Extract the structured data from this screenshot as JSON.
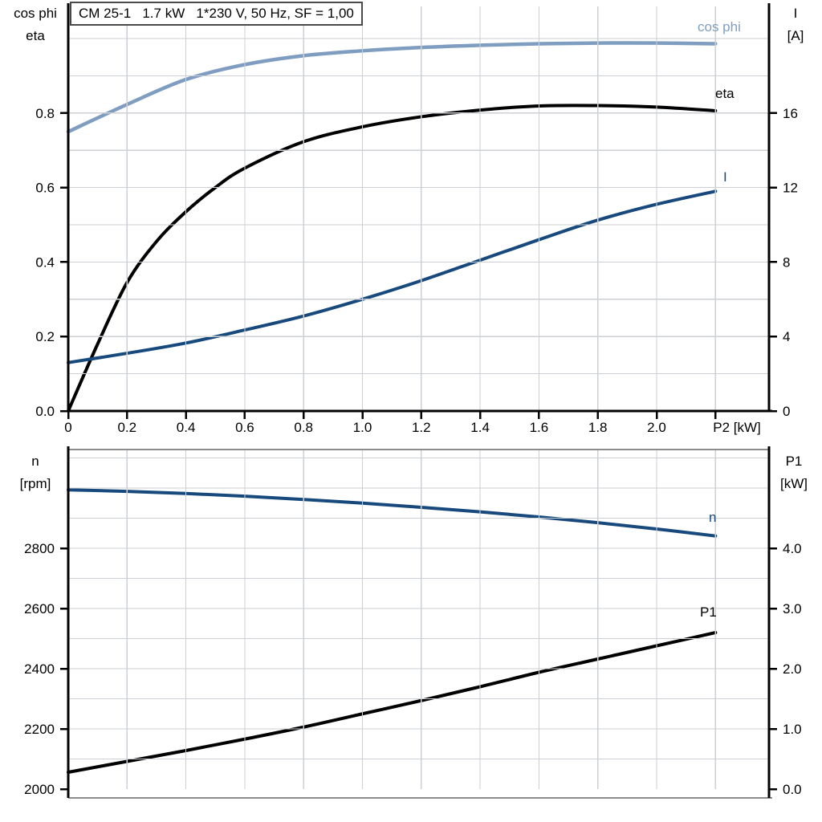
{
  "title_box": {
    "text": "CM 25-1   1.7 kW   1*230 V, 50 Hz, SF = 1,00"
  },
  "axis_headers": {
    "top_left": {
      "line1": "cos phi",
      "line2": "eta"
    },
    "top_right": {
      "line1": "I",
      "line2": "[A]"
    },
    "bottom_left": {
      "line1": "n",
      "line2": "[rpm]"
    },
    "bottom_right": {
      "line1": "P1",
      "line2": "[kW]"
    }
  },
  "curve_labels": {
    "cos_phi": "cos phi",
    "eta": "eta",
    "current": "I",
    "speed": "n",
    "power_in": "P1"
  },
  "colors": {
    "light_blue": "#7f9dc0",
    "dark_blue": "#17497d",
    "black": "#000000",
    "grid": "#cccfd3",
    "axis": "#000000",
    "gray_border": "#8c8c8c",
    "background": "#ffffff"
  },
  "chart_data": [
    {
      "type": "line",
      "title": "CM 25-1   1.7 kW   1*230 V, 50 Hz, SF = 1,00",
      "xlabel": "P2 [kW]",
      "ylabel_left": "cos phi / eta",
      "ylabel_right": "I [A]",
      "grid": true,
      "xlim": [
        0,
        2.38
      ],
      "ylim_left": [
        0,
        1.08
      ],
      "ylim_right": [
        0,
        21.7
      ],
      "x_tick_values": [
        0,
        0.2,
        0.4,
        0.6,
        0.8,
        1.0,
        1.2,
        1.4,
        1.6,
        1.8,
        2.0,
        2.2
      ],
      "x_tick_labels": [
        "0",
        "0.2",
        "0.4",
        "0.6",
        "0.8",
        "1.0",
        "1.2",
        "1.4",
        "1.6",
        "1.8",
        "2.0",
        ""
      ],
      "left_tick_values": [
        0,
        0.2,
        0.4,
        0.6,
        0.8
      ],
      "left_tick_labels": [
        "0.0",
        "0.2",
        "0.4",
        "0.6",
        "0.8"
      ],
      "right_tick_values": [
        0,
        4,
        8,
        12,
        16
      ],
      "right_tick_labels": [
        "0",
        "4",
        "8",
        "12",
        "16"
      ],
      "series": [
        {
          "name": "cos phi",
          "axis": "left",
          "color_key": "light_blue",
          "width": 4.5,
          "x": [
            0,
            0.2,
            0.4,
            0.6,
            0.8,
            1.0,
            1.2,
            1.4,
            1.6,
            1.8,
            2.0,
            2.2
          ],
          "y": [
            0.75,
            0.823,
            0.89,
            0.93,
            0.954,
            0.967,
            0.976,
            0.982,
            0.986,
            0.988,
            0.988,
            0.986
          ]
        },
        {
          "name": "eta",
          "axis": "left",
          "color_key": "black",
          "width": 4,
          "x": [
            0,
            0.1,
            0.2,
            0.3,
            0.4,
            0.5,
            0.6,
            0.8,
            1.0,
            1.2,
            1.4,
            1.6,
            1.8,
            2.0,
            2.2
          ],
          "y": [
            0,
            0.18,
            0.345,
            0.455,
            0.535,
            0.6,
            0.652,
            0.723,
            0.763,
            0.79,
            0.808,
            0.819,
            0.82,
            0.816,
            0.806
          ]
        },
        {
          "name": "I",
          "axis": "right",
          "color_key": "dark_blue",
          "width": 4,
          "x": [
            0,
            0.2,
            0.4,
            0.6,
            0.8,
            1.0,
            1.2,
            1.4,
            1.6,
            1.8,
            2.0,
            2.2
          ],
          "y": [
            2.6,
            3.1,
            3.65,
            4.35,
            5.1,
            6.0,
            7.0,
            8.1,
            9.2,
            10.25,
            11.1,
            11.8
          ]
        }
      ]
    },
    {
      "type": "line",
      "title": "",
      "xlabel": "",
      "ylabel_left": "n [rpm]",
      "ylabel_right": "P1 [kW]",
      "grid": true,
      "xlim": [
        0,
        2.38
      ],
      "ylim_left": [
        2000,
        3128
      ],
      "ylim_right": [
        0,
        5.64
      ],
      "x_tick_values": [],
      "x_tick_labels": [],
      "left_tick_values": [
        2000,
        2200,
        2400,
        2600,
        2800
      ],
      "left_tick_labels": [
        "2000",
        "2200",
        "2400",
        "2600",
        "2800"
      ],
      "right_tick_values": [
        0,
        1,
        2,
        3,
        4
      ],
      "right_tick_labels": [
        "0.0",
        "1.0",
        "2.0",
        "3.0",
        "4.0"
      ],
      "series": [
        {
          "name": "n",
          "axis": "left",
          "color_key": "dark_blue",
          "width": 4,
          "x": [
            0,
            0.2,
            0.4,
            0.6,
            0.8,
            1.0,
            1.2,
            1.4,
            1.6,
            1.8,
            2.0,
            2.2
          ],
          "y": [
            2994,
            2989,
            2982,
            2973,
            2962,
            2950,
            2936,
            2921,
            2904,
            2885,
            2864,
            2841
          ]
        },
        {
          "name": "P1",
          "axis": "right",
          "color_key": "black",
          "width": 4,
          "x": [
            0,
            0.2,
            0.4,
            0.6,
            0.8,
            1.0,
            1.2,
            1.4,
            1.6,
            1.8,
            2.0,
            2.2
          ],
          "y": [
            0.28,
            0.46,
            0.64,
            0.83,
            1.03,
            1.25,
            1.47,
            1.7,
            1.94,
            2.16,
            2.38,
            2.6
          ]
        }
      ]
    }
  ]
}
